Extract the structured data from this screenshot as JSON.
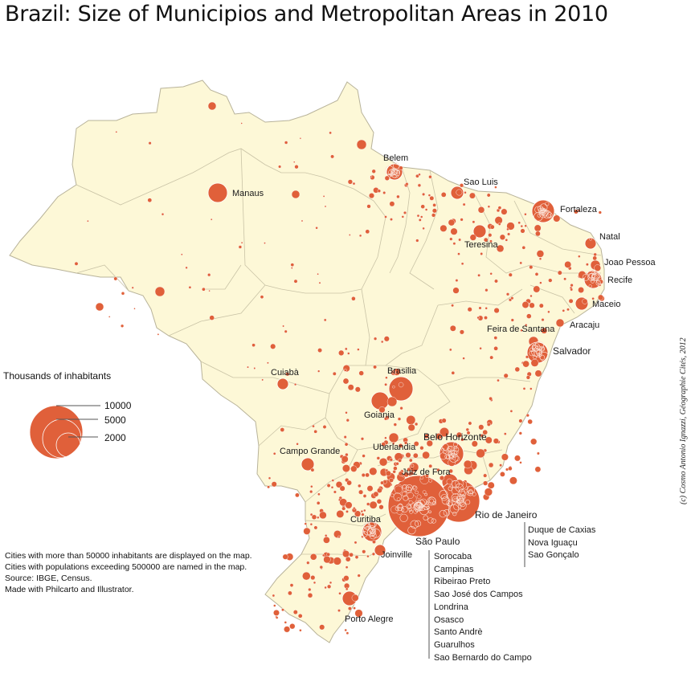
{
  "title": "Brazil:  Size of Municipios and Metropolitan Areas in 2010",
  "colors": {
    "land": "#fdf8d7",
    "border": "#b8b39a",
    "circle": "#e0603a",
    "circle_stroke": "#ffffff"
  },
  "cities": {
    "manaus": "Manaus",
    "belem": "Belem",
    "sao_luis": "Sao Luis",
    "fortaleza": "Fortaleza",
    "teresina": "Teresina",
    "natal": "Natal",
    "joao_pessoa": "Joao Pessoa",
    "recife": "Recife",
    "maceio": "Maceio",
    "aracaju": "Aracaju",
    "feira_de_santana": "Feira de Santana",
    "salvador": "Salvador",
    "cuiaba": "Cuiabà",
    "brasilia": "Brasilia",
    "goiania": "Goiania",
    "campo_grande": "Campo Grande",
    "uberlandia": "Uberlandia",
    "belo_horizonte": "Belo Horizonte",
    "juiz_de_fora": "Juiz de Fora",
    "rio_de_janeiro": "Rio de Janeiro",
    "sao_paulo": "São Paulo",
    "curitiba": "Curitiba",
    "joinville": "Joinville",
    "porto_alegre": "Porto Alegre"
  },
  "rio_metro": [
    "Duque de Caxias",
    "Nova Iguaçu",
    "Sao Gonçalo"
  ],
  "sp_metro": [
    "Sorocaba",
    "Campinas",
    "Ribeirao Preto",
    "Sao José dos Campos",
    "Londrina",
    "Osasco",
    "Santo Andrè",
    "Guarulhos",
    "Sao Bernardo do Campo"
  ],
  "legend": {
    "title": "Thousands of inhabitants",
    "values": [
      "10000",
      "5000",
      "2000"
    ]
  },
  "notes": [
    "Cities with more than 50000 inhabitants are displayed on the map.",
    "Cities with populations exceeding 500000 are named in the map.",
    "Source: IBGE, Census.",
    "Made with Philcarto and Illustrator."
  ],
  "credit": "(c) Cosmo Antonio Ignazzi, Géographie Cités, 2012"
}
